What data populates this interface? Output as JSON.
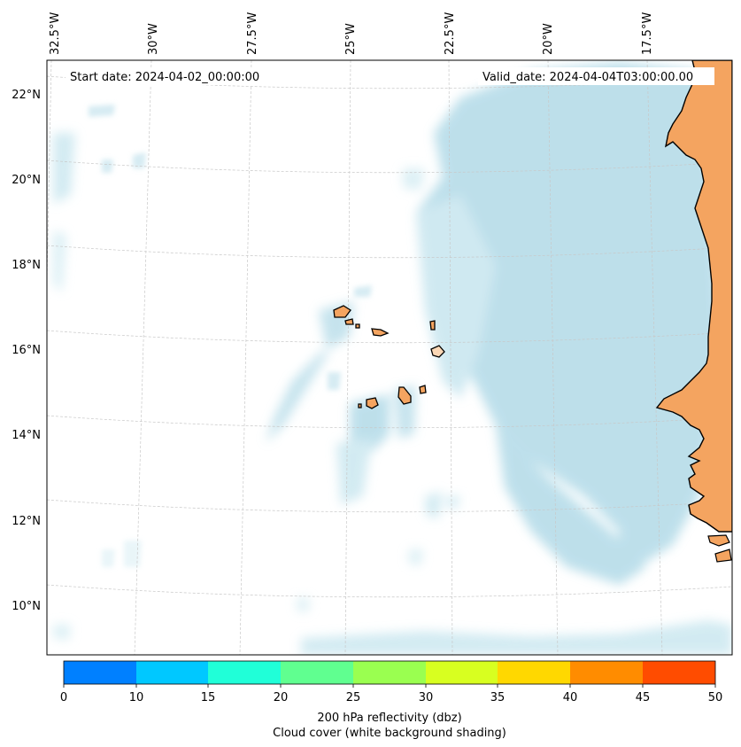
{
  "map": {
    "start_date": "Start date: 2024-04-02_00:00:00",
    "valid_date": "Valid_date: 2024-04-04T03:00:00.00",
    "lon_labels": [
      "32.5°W",
      "30°W",
      "27.5°W",
      "25°W",
      "22.5°W",
      "20°W",
      "17.5°W"
    ],
    "lat_labels": [
      "22°N",
      "20°N",
      "18°N",
      "16°N",
      "14°N",
      "12°N",
      "10°N"
    ],
    "land_color": "#f4a460",
    "cloud_color": "#add8e6"
  },
  "colorbar": {
    "ticks": [
      "0",
      "10",
      "15",
      "20",
      "25",
      "30",
      "35",
      "40",
      "45",
      "50"
    ],
    "colors": [
      "#0080ff",
      "#00c8ff",
      "#20ffd8",
      "#60ff90",
      "#9aff50",
      "#d8ff20",
      "#ffd800",
      "#ff8c00",
      "#ff4c00"
    ],
    "label_line1": "200 hPa reflectivity (dbz)",
    "label_line2": "Cloud cover (white background shading)"
  }
}
